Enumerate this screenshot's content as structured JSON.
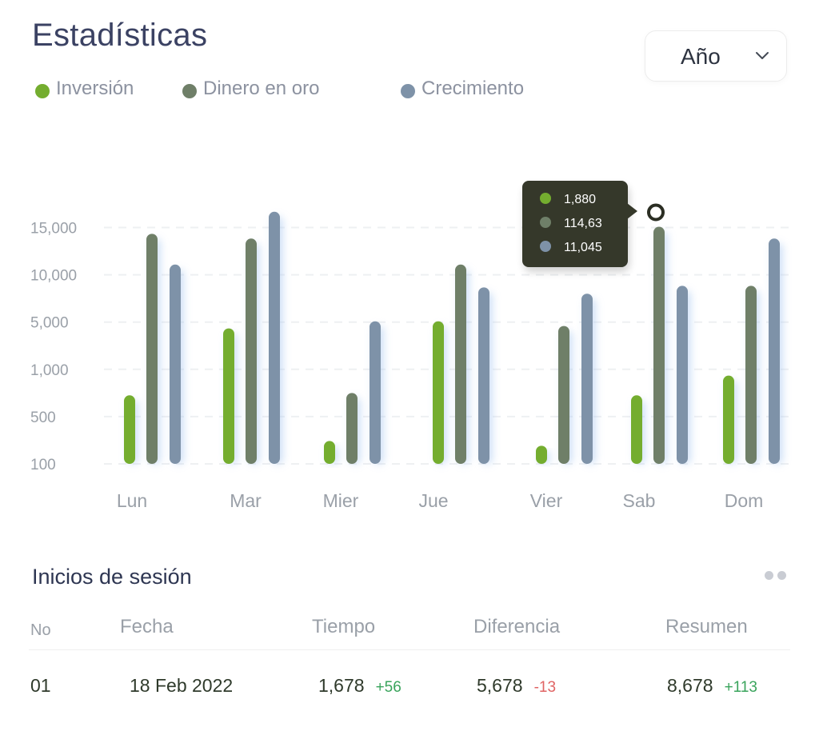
{
  "header": {
    "title": "Estadísticas",
    "period_select": "Año"
  },
  "legend": [
    {
      "label": "Inversión",
      "color": "#74ad2f"
    },
    {
      "label": "Dinero en oro",
      "color": "#6f7f68"
    },
    {
      "label": "Crecimiento",
      "color": "#7e92a8"
    }
  ],
  "chart_data": {
    "type": "bar",
    "categories": [
      "Lun",
      "Mar",
      "Mier",
      "Jue",
      "Vier",
      "Sab",
      "Dom"
    ],
    "y_ticks": [
      "15,000",
      "10,000",
      "5,000",
      "1,000",
      "500",
      "100"
    ],
    "grid": true,
    "series": [
      {
        "name": "Inversión",
        "color": "#74ad2f",
        "values": [
          4.35,
          8.6,
          1.45,
          9.05,
          1.15,
          4.35,
          5.6
        ]
      },
      {
        "name": "Dinero en oro",
        "color": "#6f7f68",
        "values": [
          14.6,
          14.3,
          4.5,
          12.65,
          8.75,
          15.05,
          11.3
        ]
      },
      {
        "name": "Crecimiento",
        "color": "#7e92a8",
        "values": [
          12.65,
          16.0,
          9.05,
          11.2,
          10.8,
          11.3,
          14.3
        ]
      }
    ],
    "tooltip": {
      "category": "Vier",
      "items": [
        {
          "value": "1,880",
          "color": "#74ad2f"
        },
        {
          "value": "114,63",
          "color": "#6f7f68"
        },
        {
          "value": "11,045",
          "color": "#7e92a8"
        }
      ]
    },
    "marker": {
      "category": "Sab",
      "series": "Dinero en oro"
    }
  },
  "logins": {
    "title": "Inicios de sesión",
    "columns": {
      "no": "No",
      "date": "Fecha",
      "time": "Tiempo",
      "diff": "Diferencia",
      "summary": "Resumen"
    },
    "rows": [
      {
        "no": "01",
        "date": "18 Feb 2022",
        "time": "1,678",
        "time_delta": "+56",
        "diff": "5,678",
        "diff_delta": "-13",
        "summary": "8,678",
        "summary_delta": "+113"
      }
    ]
  }
}
